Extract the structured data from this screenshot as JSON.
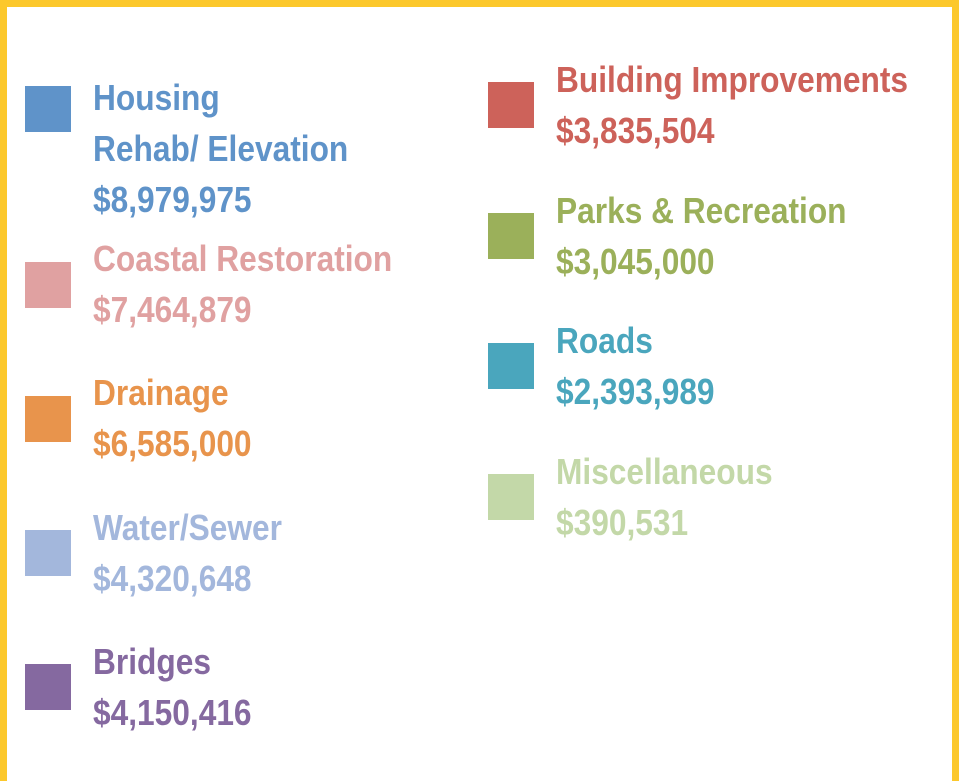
{
  "items": [
    {
      "lines": [
        "Housing",
        "Rehab/ Elevation"
      ],
      "amount": "$8,979,975",
      "color": "#5f93c9"
    },
    {
      "lines": [
        "Coastal Restoration"
      ],
      "amount": "$7,464,879",
      "color": "#e0a1a1"
    },
    {
      "lines": [
        "Drainage"
      ],
      "amount": "$6,585,000",
      "color": "#e8944c"
    },
    {
      "lines": [
        "Water/Sewer"
      ],
      "amount": "$4,320,648",
      "color": "#a3b7dc"
    },
    {
      "lines": [
        "Bridges"
      ],
      "amount": "$4,150,416",
      "color": "#8569a0"
    },
    {
      "lines": [
        "Building Improvements"
      ],
      "amount": "$3,835,504",
      "color": "#cd625a"
    },
    {
      "lines": [
        "Parks & Recreation"
      ],
      "amount": "$3,045,000",
      "color": "#9bb05a"
    },
    {
      "lines": [
        "Roads"
      ],
      "amount": "$2,393,989",
      "color": "#4aa6bd"
    },
    {
      "lines": [
        "Miscellaneous"
      ],
      "amount": "$390,531",
      "color": "#c3d8a8"
    }
  ]
}
